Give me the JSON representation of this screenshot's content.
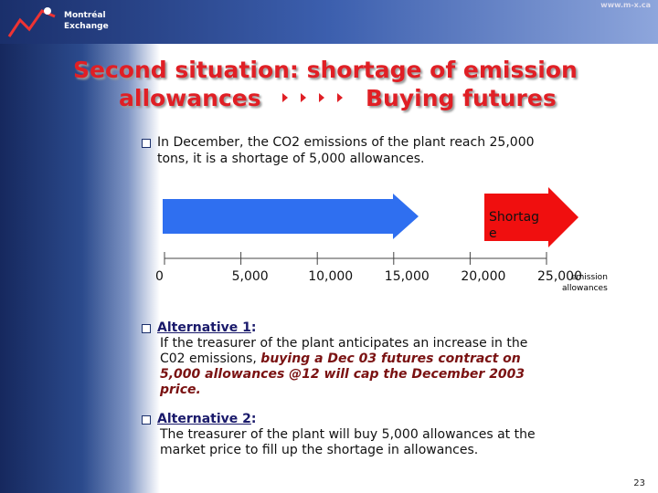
{
  "header": {
    "logo_line1": "Montréal",
    "logo_line2": "Exchange",
    "url": "www.m-x.ca"
  },
  "title": {
    "line1": "Second situation: shortage of emission",
    "line2_start": "allowances",
    "line2_end": "Buying futures"
  },
  "bullet1": {
    "lines": [
      "In December, the CO2 emissions of the plant reach 25,000",
      "tons, it is a shortage of 5,000 allowances."
    ]
  },
  "diagram": {
    "arrow_label_lines": [
      "Shortag",
      "e"
    ],
    "ticks": [
      "0",
      "5,000",
      "10,000",
      "15,000",
      "20,000",
      "25,000"
    ],
    "unit_lines": [
      "emission",
      "allowances"
    ]
  },
  "alternative1": {
    "label": "Alternative 1",
    "suffix": ":",
    "line1": "If the treasurer of the plant anticipates an increase in the",
    "line2_plain": "C02 emissions, ",
    "line2_bold": "buying a Dec 03 futures contract on",
    "line3_bold": "5,000 allowances @12 will cap the December 2003",
    "line4_bold": "price."
  },
  "alternative2": {
    "label": "Alternative 2",
    "suffix": ":",
    "lines": [
      "The treasurer of the plant will buy 5,000 allowances at the",
      "market price to fill up the shortage in allowances."
    ]
  },
  "footer": {
    "page": "23"
  }
}
